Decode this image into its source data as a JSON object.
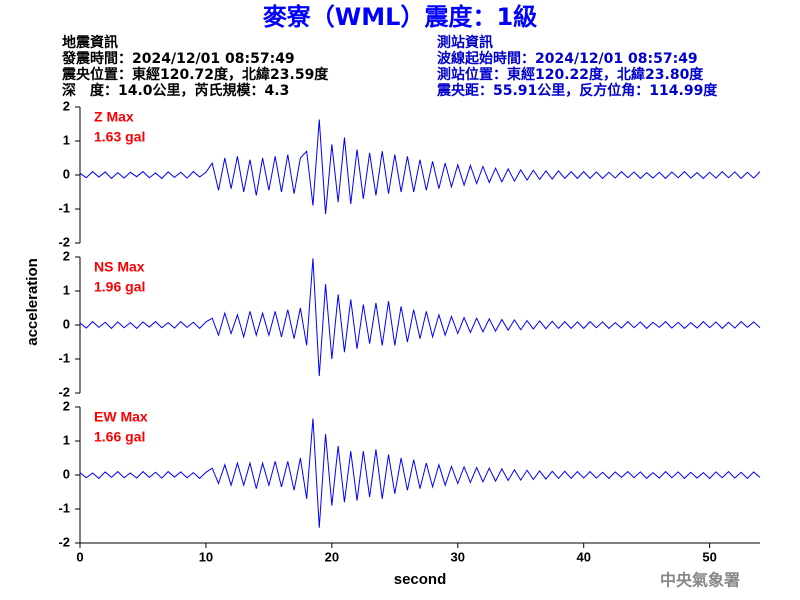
{
  "title": "麥寮（WML）震度：1級",
  "quake_info": {
    "heading": "地震資訊",
    "lines": [
      "發震時間：2024/12/01 08:57:49",
      "震央位置：東經120.72度，北緯23.59度",
      "深　度：14.0公里，芮氏規模：4.3"
    ]
  },
  "station_info": {
    "heading": "測站資訊",
    "lines": [
      "波線起始時間：2024/12/01 08:57:49",
      "測站位置：東經120.22度，北緯23.80度",
      "震央距：55.91公里，反方位角：114.99度"
    ]
  },
  "agency": "中央氣象署",
  "chart_data": [
    {
      "type": "line",
      "label": "Z Max",
      "max_label": "1.63 gal",
      "color": "#0000ff",
      "label_color": "#ff0000",
      "xlim": [
        0,
        54
      ],
      "ylim": [
        -2,
        2
      ],
      "yticks": [
        -2,
        -1,
        0,
        1,
        2
      ],
      "x": [
        0,
        0.5,
        1,
        1.5,
        2,
        2.5,
        3,
        3.5,
        4,
        4.5,
        5,
        5.5,
        6,
        6.5,
        7,
        7.5,
        8,
        8.5,
        9,
        9.5,
        10,
        10.5,
        11,
        11.5,
        12,
        12.5,
        13,
        13.5,
        14,
        14.5,
        15,
        15.5,
        16,
        16.5,
        17,
        17.5,
        18,
        18.5,
        19,
        19.5,
        20,
        20.5,
        21,
        21.5,
        22,
        22.5,
        23,
        23.5,
        24,
        24.5,
        25,
        25.5,
        26,
        26.5,
        27,
        27.5,
        28,
        28.5,
        29,
        29.5,
        30,
        30.5,
        31,
        31.5,
        32,
        32.5,
        33,
        33.5,
        34,
        34.5,
        35,
        35.5,
        36,
        36.5,
        37,
        37.5,
        38,
        38.5,
        39,
        39.5,
        40,
        40.5,
        41,
        41.5,
        42,
        42.5,
        43,
        43.5,
        44,
        44.5,
        45,
        45.5,
        46,
        46.5,
        47,
        47.5,
        48,
        48.5,
        49,
        49.5,
        50,
        50.5,
        51,
        51.5,
        52,
        52.5,
        53,
        53.5,
        54
      ],
      "values": [
        0.05,
        -0.08,
        0.1,
        -0.06,
        0.09,
        -0.1,
        0.07,
        -0.09,
        0.08,
        -0.05,
        0.1,
        -0.08,
        0.06,
        -0.1,
        0.09,
        -0.07,
        0.08,
        -0.09,
        0.1,
        -0.06,
        0.08,
        0.35,
        -0.45,
        0.5,
        -0.4,
        0.55,
        -0.5,
        0.45,
        -0.6,
        0.5,
        -0.45,
        0.55,
        -0.5,
        0.6,
        -0.55,
        0.5,
        0.7,
        -0.9,
        1.63,
        -1.15,
        0.9,
        -0.8,
        1.1,
        -0.85,
        0.75,
        -0.7,
        0.65,
        -0.6,
        0.7,
        -0.55,
        0.6,
        -0.5,
        0.55,
        -0.5,
        0.45,
        -0.45,
        0.4,
        -0.4,
        0.35,
        -0.35,
        0.3,
        -0.3,
        0.28,
        -0.25,
        0.25,
        -0.22,
        0.2,
        -0.2,
        0.18,
        -0.18,
        0.15,
        -0.15,
        0.14,
        -0.13,
        0.12,
        -0.12,
        0.12,
        -0.1,
        0.1,
        -0.1,
        0.1,
        -0.1,
        0.09,
        -0.1,
        0.08,
        -0.09,
        0.1,
        -0.08,
        0.09,
        -0.1,
        0.07,
        -0.09,
        0.08,
        -0.1,
        0.09,
        -0.08,
        0.1,
        -0.09,
        0.07,
        -0.1,
        0.08,
        -0.09,
        0.1,
        -0.08,
        0.09,
        -0.1,
        0.08,
        -0.09,
        0.1
      ]
    },
    {
      "type": "line",
      "label": "NS Max",
      "max_label": "1.96 gal",
      "color": "#0000ff",
      "label_color": "#ff0000",
      "ylabel": "acceleration",
      "xlim": [
        0,
        54
      ],
      "ylim": [
        -2,
        2
      ],
      "yticks": [
        -2,
        -1,
        0,
        1,
        2
      ],
      "x": [
        0,
        0.5,
        1,
        1.5,
        2,
        2.5,
        3,
        3.5,
        4,
        4.5,
        5,
        5.5,
        6,
        6.5,
        7,
        7.5,
        8,
        8.5,
        9,
        9.5,
        10,
        10.5,
        11,
        11.5,
        12,
        12.5,
        13,
        13.5,
        14,
        14.5,
        15,
        15.5,
        16,
        16.5,
        17,
        17.5,
        18,
        18.5,
        19,
        19.5,
        20,
        20.5,
        21,
        21.5,
        22,
        22.5,
        23,
        23.5,
        24,
        24.5,
        25,
        25.5,
        26,
        26.5,
        27,
        27.5,
        28,
        28.5,
        29,
        29.5,
        30,
        30.5,
        31,
        31.5,
        32,
        32.5,
        33,
        33.5,
        34,
        34.5,
        35,
        35.5,
        36,
        36.5,
        37,
        37.5,
        38,
        38.5,
        39,
        39.5,
        40,
        40.5,
        41,
        41.5,
        42,
        42.5,
        43,
        43.5,
        44,
        44.5,
        45,
        45.5,
        46,
        46.5,
        47,
        47.5,
        48,
        48.5,
        49,
        49.5,
        50,
        50.5,
        51,
        51.5,
        52,
        52.5,
        53,
        53.5,
        54
      ],
      "values": [
        0.06,
        -0.09,
        0.1,
        -0.07,
        0.08,
        -0.1,
        0.09,
        -0.08,
        0.07,
        -0.1,
        0.09,
        -0.06,
        0.1,
        -0.08,
        0.07,
        -0.09,
        0.1,
        -0.07,
        0.08,
        -0.1,
        0.09,
        0.2,
        -0.3,
        0.35,
        -0.25,
        0.3,
        -0.35,
        0.4,
        -0.3,
        0.35,
        -0.3,
        0.4,
        -0.35,
        0.45,
        -0.4,
        0.5,
        -0.6,
        1.96,
        -1.5,
        1.2,
        -1.0,
        0.9,
        -0.8,
        0.75,
        -0.7,
        0.6,
        -0.55,
        0.65,
        -0.6,
        0.7,
        -0.6,
        0.55,
        -0.5,
        0.45,
        -0.4,
        0.4,
        -0.35,
        0.3,
        -0.3,
        0.25,
        -0.25,
        0.22,
        -0.22,
        0.2,
        -0.2,
        0.18,
        -0.18,
        0.16,
        -0.15,
        0.15,
        -0.14,
        0.13,
        -0.12,
        0.12,
        -0.11,
        0.11,
        -0.1,
        0.1,
        -0.1,
        0.09,
        -0.1,
        0.1,
        -0.08,
        0.09,
        -0.1,
        0.07,
        -0.09,
        0.1,
        -0.08,
        0.09,
        -0.1,
        0.08,
        -0.07,
        0.1,
        -0.09,
        0.08,
        -0.1,
        0.07,
        -0.09,
        0.1,
        -0.08,
        0.09,
        -0.1,
        0.08,
        -0.09,
        0.1,
        -0.07,
        0.09,
        -0.08
      ]
    },
    {
      "type": "line",
      "label": "EW Max",
      "max_label": "1.66 gal",
      "color": "#0000ff",
      "label_color": "#ff0000",
      "xlabel": "second",
      "xlim": [
        0,
        54
      ],
      "ylim": [
        -2,
        2
      ],
      "yticks": [
        -2,
        -1,
        0,
        1,
        2
      ],
      "xticks": [
        0,
        10,
        20,
        30,
        40,
        50
      ],
      "x": [
        0,
        0.5,
        1,
        1.5,
        2,
        2.5,
        3,
        3.5,
        4,
        4.5,
        5,
        5.5,
        6,
        6.5,
        7,
        7.5,
        8,
        8.5,
        9,
        9.5,
        10,
        10.5,
        11,
        11.5,
        12,
        12.5,
        13,
        13.5,
        14,
        14.5,
        15,
        15.5,
        16,
        16.5,
        17,
        17.5,
        18,
        18.5,
        19,
        19.5,
        20,
        20.5,
        21,
        21.5,
        22,
        22.5,
        23,
        23.5,
        24,
        24.5,
        25,
        25.5,
        26,
        26.5,
        27,
        27.5,
        28,
        28.5,
        29,
        29.5,
        30,
        30.5,
        31,
        31.5,
        32,
        32.5,
        33,
        33.5,
        34,
        34.5,
        35,
        35.5,
        36,
        36.5,
        37,
        37.5,
        38,
        38.5,
        39,
        39.5,
        40,
        40.5,
        41,
        41.5,
        42,
        42.5,
        43,
        43.5,
        44,
        44.5,
        45,
        45.5,
        46,
        46.5,
        47,
        47.5,
        48,
        48.5,
        49,
        49.5,
        50,
        50.5,
        51,
        51.5,
        52,
        52.5,
        53,
        53.5,
        54
      ],
      "values": [
        0.07,
        -0.08,
        0.06,
        -0.1,
        0.09,
        -0.07,
        0.1,
        -0.08,
        0.06,
        -0.09,
        0.1,
        -0.07,
        0.08,
        -0.09,
        0.1,
        -0.06,
        0.09,
        -0.08,
        0.07,
        -0.1,
        0.08,
        0.2,
        -0.25,
        0.3,
        -0.3,
        0.35,
        -0.3,
        0.35,
        -0.4,
        0.35,
        -0.3,
        0.4,
        -0.35,
        0.4,
        -0.45,
        0.5,
        -0.7,
        1.66,
        -1.55,
        1.2,
        -0.9,
        0.85,
        -0.8,
        0.7,
        -0.75,
        0.7,
        -0.65,
        0.75,
        -0.7,
        0.6,
        -0.55,
        0.5,
        -0.45,
        0.45,
        -0.4,
        0.35,
        -0.35,
        0.3,
        -0.3,
        0.25,
        -0.25,
        0.24,
        -0.22,
        0.22,
        -0.2,
        0.2,
        -0.18,
        0.18,
        -0.16,
        0.15,
        -0.15,
        0.14,
        -0.13,
        0.12,
        -0.12,
        0.11,
        -0.1,
        0.11,
        -0.1,
        0.1,
        -0.09,
        0.1,
        -0.09,
        0.08,
        -0.1,
        0.09,
        -0.07,
        0.1,
        -0.08,
        0.09,
        -0.1,
        0.07,
        -0.09,
        0.1,
        -0.08,
        0.09,
        -0.1,
        0.08,
        -0.09,
        0.07,
        -0.1,
        0.09,
        -0.08,
        0.1,
        -0.09,
        0.08,
        -0.1,
        0.09,
        -0.07
      ]
    }
  ]
}
